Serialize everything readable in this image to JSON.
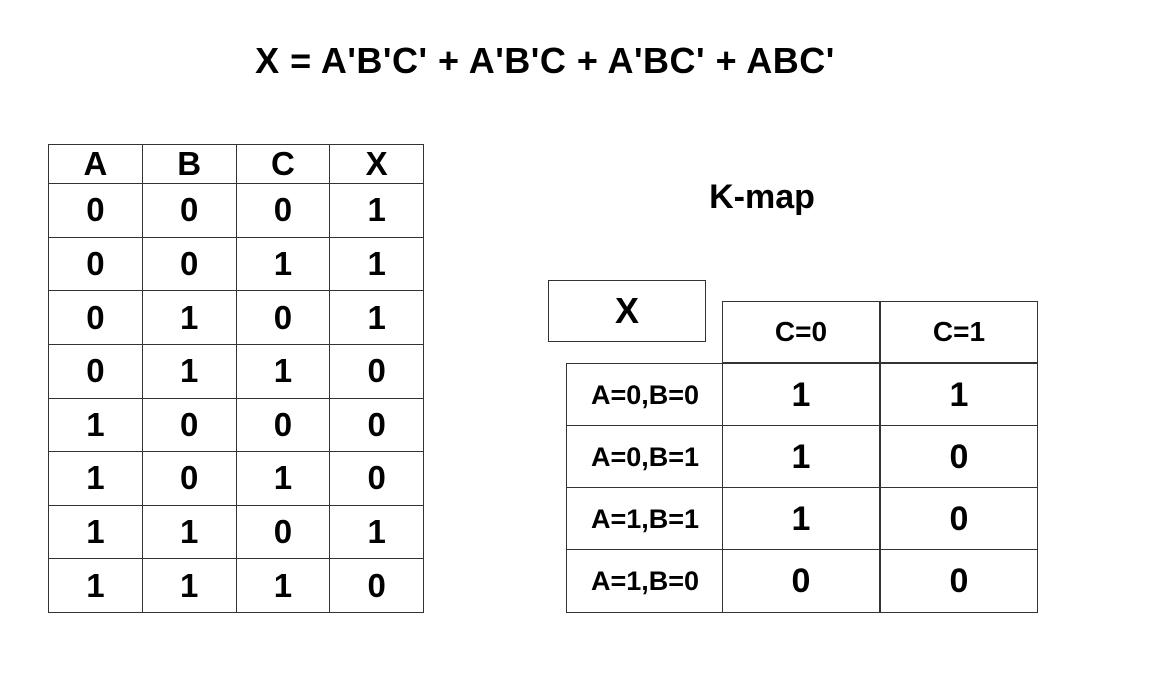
{
  "equation": "X = A'B'C' + A'B'C + A'BC' + ABC'",
  "truth_table": {
    "headers": [
      "A",
      "B",
      "C",
      "X"
    ],
    "rows": [
      [
        "0",
        "0",
        "0",
        "1"
      ],
      [
        "0",
        "0",
        "1",
        "1"
      ],
      [
        "0",
        "1",
        "0",
        "1"
      ],
      [
        "0",
        "1",
        "1",
        "0"
      ],
      [
        "1",
        "0",
        "0",
        "0"
      ],
      [
        "1",
        "0",
        "1",
        "0"
      ],
      [
        "1",
        "1",
        "0",
        "1"
      ],
      [
        "1",
        "1",
        "1",
        "0"
      ]
    ]
  },
  "kmap": {
    "title": "K-map",
    "corner_label": "X",
    "col_headers": [
      "C=0",
      "C=1"
    ],
    "row_headers": [
      "A=0,B=0",
      "A=0,B=1",
      "A=1,B=1",
      "A=1,B=0"
    ],
    "values": [
      [
        "1",
        "1"
      ],
      [
        "1",
        "0"
      ],
      [
        "1",
        "0"
      ],
      [
        "0",
        "0"
      ]
    ]
  }
}
